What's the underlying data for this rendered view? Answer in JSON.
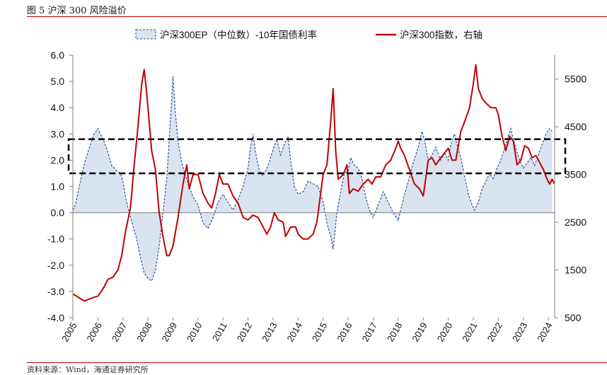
{
  "figure": {
    "title": "图 5 沪深 300 风险溢价",
    "source": "资料来源：Wind，海通证券研究所"
  },
  "colors": {
    "ep_line": "#2f5597",
    "ep_fill": "#dae3f0",
    "index_line": "#c00000",
    "rule": "#c00000",
    "box": "#000000",
    "axis": "#7f7f7f"
  },
  "chart_data": {
    "type": "area+line",
    "title": "",
    "legend": {
      "placement": "top",
      "items": [
        "沪深300EP（中位数）-10年国债利率",
        "沪深300指数，右轴"
      ]
    },
    "x_labels": [
      "2005",
      "2006",
      "2007",
      "2008",
      "2009",
      "2010",
      "2011",
      "2012",
      "2013",
      "2014",
      "2015",
      "2016",
      "2017",
      "2018",
      "2019",
      "2020",
      "2021",
      "2022",
      "2023",
      "2024"
    ],
    "x_range": [
      2005.0,
      2024.25
    ],
    "y_left": {
      "range": [
        -4.0,
        6.0
      ],
      "ticks": [
        "6.0",
        "5.0",
        "4.0",
        "3.0",
        "2.0",
        "1.0",
        "0.0",
        "-1.0",
        "-2.0",
        "-3.0",
        "-4.0"
      ]
    },
    "y_right": {
      "range": [
        500,
        6000
      ],
      "ticks": [
        "5500",
        "4500",
        "3500",
        "2500",
        "1500",
        "500"
      ]
    },
    "box_band": [
      1.5,
      2.8
    ],
    "series": [
      {
        "name": "沪深300EP（中位数）-10年国债利率",
        "axis": "left",
        "style": "dashed area",
        "points": [
          [
            2005.0,
            0.1
          ],
          [
            2005.1,
            0.3
          ],
          [
            2005.3,
            1.2
          ],
          [
            2005.5,
            2.0
          ],
          [
            2005.7,
            2.6
          ],
          [
            2005.85,
            3.0
          ],
          [
            2006.0,
            3.2
          ],
          [
            2006.1,
            3.0
          ],
          [
            2006.25,
            2.7
          ],
          [
            2006.4,
            2.3
          ],
          [
            2006.55,
            1.8
          ],
          [
            2006.75,
            1.6
          ],
          [
            2006.9,
            1.5
          ],
          [
            2007.0,
            1.2
          ],
          [
            2007.1,
            0.6
          ],
          [
            2007.25,
            0.0
          ],
          [
            2007.4,
            -0.5
          ],
          [
            2007.55,
            -1.0
          ],
          [
            2007.7,
            -1.7
          ],
          [
            2007.85,
            -2.3
          ],
          [
            2008.0,
            -2.5
          ],
          [
            2008.15,
            -2.6
          ],
          [
            2008.3,
            -2.2
          ],
          [
            2008.45,
            -1.3
          ],
          [
            2008.6,
            0.0
          ],
          [
            2008.75,
            1.3
          ],
          [
            2008.85,
            2.8
          ],
          [
            2008.95,
            4.3
          ],
          [
            2009.0,
            5.2
          ],
          [
            2009.08,
            4.0
          ],
          [
            2009.2,
            2.7
          ],
          [
            2009.35,
            1.9
          ],
          [
            2009.5,
            1.4
          ],
          [
            2009.65,
            1.0
          ],
          [
            2009.8,
            0.6
          ],
          [
            2010.0,
            0.3
          ],
          [
            2010.2,
            -0.4
          ],
          [
            2010.4,
            -0.6
          ],
          [
            2010.6,
            -0.2
          ],
          [
            2010.8,
            0.4
          ],
          [
            2011.0,
            0.7
          ],
          [
            2011.2,
            0.4
          ],
          [
            2011.4,
            0.1
          ],
          [
            2011.6,
            0.5
          ],
          [
            2011.8,
            1.0
          ],
          [
            2012.0,
            1.7
          ],
          [
            2012.1,
            2.5
          ],
          [
            2012.2,
            3.0
          ],
          [
            2012.3,
            2.3
          ],
          [
            2012.45,
            1.6
          ],
          [
            2012.6,
            1.4
          ],
          [
            2012.8,
            1.8
          ],
          [
            2013.0,
            2.4
          ],
          [
            2013.15,
            2.8
          ],
          [
            2013.3,
            2.2
          ],
          [
            2013.45,
            2.6
          ],
          [
            2013.6,
            2.9
          ],
          [
            2013.7,
            2.0
          ],
          [
            2013.85,
            1.0
          ],
          [
            2014.0,
            0.7
          ],
          [
            2014.2,
            0.8
          ],
          [
            2014.4,
            1.2
          ],
          [
            2014.6,
            1.1
          ],
          [
            2014.8,
            1.0
          ],
          [
            2015.0,
            0.4
          ],
          [
            2015.15,
            -0.4
          ],
          [
            2015.3,
            -0.9
          ],
          [
            2015.4,
            -1.4
          ],
          [
            2015.55,
            0.0
          ],
          [
            2015.7,
            0.8
          ],
          [
            2015.85,
            1.5
          ],
          [
            2016.0,
            1.6
          ],
          [
            2016.1,
            2.1
          ],
          [
            2016.25,
            1.8
          ],
          [
            2016.4,
            1.7
          ],
          [
            2016.55,
            1.3
          ],
          [
            2016.7,
            0.6
          ],
          [
            2016.85,
            0.1
          ],
          [
            2017.0,
            -0.2
          ],
          [
            2017.2,
            0.3
          ],
          [
            2017.4,
            0.8
          ],
          [
            2017.6,
            0.4
          ],
          [
            2017.8,
            0.0
          ],
          [
            2018.0,
            -0.3
          ],
          [
            2018.2,
            0.5
          ],
          [
            2018.4,
            1.2
          ],
          [
            2018.6,
            1.9
          ],
          [
            2018.8,
            2.5
          ],
          [
            2018.95,
            3.1
          ],
          [
            2019.05,
            2.8
          ],
          [
            2019.2,
            2.0
          ],
          [
            2019.35,
            2.2
          ],
          [
            2019.5,
            2.5
          ],
          [
            2019.7,
            2.0
          ],
          [
            2019.85,
            2.3
          ],
          [
            2020.0,
            2.0
          ],
          [
            2020.1,
            2.6
          ],
          [
            2020.25,
            3.0
          ],
          [
            2020.35,
            2.6
          ],
          [
            2020.5,
            2.1
          ],
          [
            2020.65,
            1.4
          ],
          [
            2020.8,
            0.7
          ],
          [
            2020.95,
            0.3
          ],
          [
            2021.05,
            0.1
          ],
          [
            2021.2,
            0.4
          ],
          [
            2021.35,
            0.9
          ],
          [
            2021.5,
            1.2
          ],
          [
            2021.65,
            1.5
          ],
          [
            2021.8,
            1.3
          ],
          [
            2021.95,
            1.7
          ],
          [
            2022.05,
            1.9
          ],
          [
            2022.2,
            2.3
          ],
          [
            2022.35,
            2.8
          ],
          [
            2022.5,
            3.2
          ],
          [
            2022.6,
            2.8
          ],
          [
            2022.75,
            2.3
          ],
          [
            2022.9,
            1.9
          ],
          [
            2023.0,
            1.7
          ],
          [
            2023.15,
            1.9
          ],
          [
            2023.3,
            2.1
          ],
          [
            2023.45,
            1.8
          ],
          [
            2023.6,
            2.2
          ],
          [
            2023.75,
            2.6
          ],
          [
            2023.9,
            3.0
          ],
          [
            2024.05,
            3.2
          ],
          [
            2024.15,
            3.1
          ]
        ]
      },
      {
        "name": "沪深300指数，右轴",
        "axis": "right",
        "style": "solid line",
        "points": [
          [
            2005.0,
            1000
          ],
          [
            2005.15,
            950
          ],
          [
            2005.3,
            900
          ],
          [
            2005.45,
            850
          ],
          [
            2005.6,
            880
          ],
          [
            2005.8,
            920
          ],
          [
            2006.0,
            950
          ],
          [
            2006.2,
            1100
          ],
          [
            2006.4,
            1300
          ],
          [
            2006.6,
            1350
          ],
          [
            2006.8,
            1500
          ],
          [
            2006.95,
            1800
          ],
          [
            2007.1,
            2300
          ],
          [
            2007.3,
            2800
          ],
          [
            2007.45,
            3700
          ],
          [
            2007.6,
            4500
          ],
          [
            2007.75,
            5400
          ],
          [
            2007.85,
            5700
          ],
          [
            2007.95,
            5200
          ],
          [
            2008.05,
            4600
          ],
          [
            2008.15,
            4000
          ],
          [
            2008.3,
            3600
          ],
          [
            2008.45,
            2700
          ],
          [
            2008.6,
            2200
          ],
          [
            2008.75,
            1800
          ],
          [
            2008.85,
            1800
          ],
          [
            2009.0,
            2000
          ],
          [
            2009.2,
            2600
          ],
          [
            2009.4,
            3300
          ],
          [
            2009.55,
            3700
          ],
          [
            2009.65,
            3200
          ],
          [
            2009.8,
            3500
          ],
          [
            2010.0,
            3500
          ],
          [
            2010.2,
            3100
          ],
          [
            2010.4,
            2900
          ],
          [
            2010.55,
            2800
          ],
          [
            2010.7,
            3100
          ],
          [
            2010.85,
            3500
          ],
          [
            2011.0,
            3300
          ],
          [
            2011.2,
            3300
          ],
          [
            2011.4,
            3050
          ],
          [
            2011.6,
            2900
          ],
          [
            2011.8,
            2600
          ],
          [
            2012.0,
            2550
          ],
          [
            2012.2,
            2650
          ],
          [
            2012.4,
            2600
          ],
          [
            2012.6,
            2400
          ],
          [
            2012.75,
            2250
          ],
          [
            2012.9,
            2400
          ],
          [
            2013.05,
            2700
          ],
          [
            2013.2,
            2550
          ],
          [
            2013.4,
            2500
          ],
          [
            2013.5,
            2200
          ],
          [
            2013.7,
            2400
          ],
          [
            2013.9,
            2400
          ],
          [
            2014.0,
            2250
          ],
          [
            2014.2,
            2150
          ],
          [
            2014.4,
            2150
          ],
          [
            2014.6,
            2250
          ],
          [
            2014.75,
            2500
          ],
          [
            2014.9,
            3100
          ],
          [
            2015.0,
            3500
          ],
          [
            2015.15,
            3700
          ],
          [
            2015.3,
            4600
          ],
          [
            2015.4,
            5300
          ],
          [
            2015.5,
            4000
          ],
          [
            2015.6,
            3400
          ],
          [
            2015.8,
            3500
          ],
          [
            2015.95,
            3700
          ],
          [
            2016.05,
            3100
          ],
          [
            2016.2,
            3200
          ],
          [
            2016.4,
            3150
          ],
          [
            2016.6,
            3300
          ],
          [
            2016.8,
            3400
          ],
          [
            2016.95,
            3300
          ],
          [
            2017.1,
            3450
          ],
          [
            2017.3,
            3450
          ],
          [
            2017.5,
            3700
          ],
          [
            2017.7,
            3800
          ],
          [
            2017.9,
            4050
          ],
          [
            2018.0,
            4200
          ],
          [
            2018.1,
            4050
          ],
          [
            2018.25,
            3900
          ],
          [
            2018.45,
            3600
          ],
          [
            2018.65,
            3300
          ],
          [
            2018.85,
            3200
          ],
          [
            2019.0,
            3050
          ],
          [
            2019.2,
            3800
          ],
          [
            2019.35,
            3850
          ],
          [
            2019.5,
            3700
          ],
          [
            2019.7,
            3850
          ],
          [
            2019.85,
            3950
          ],
          [
            2020.0,
            4050
          ],
          [
            2020.15,
            3800
          ],
          [
            2020.3,
            3800
          ],
          [
            2020.5,
            4400
          ],
          [
            2020.65,
            4600
          ],
          [
            2020.85,
            4900
          ],
          [
            2021.0,
            5400
          ],
          [
            2021.1,
            5800
          ],
          [
            2021.2,
            5300
          ],
          [
            2021.35,
            5100
          ],
          [
            2021.5,
            5000
          ],
          [
            2021.7,
            4900
          ],
          [
            2021.9,
            4900
          ],
          [
            2022.0,
            4750
          ],
          [
            2022.15,
            4300
          ],
          [
            2022.3,
            4000
          ],
          [
            2022.45,
            4300
          ],
          [
            2022.6,
            4200
          ],
          [
            2022.75,
            3700
          ],
          [
            2022.9,
            3800
          ],
          [
            2023.05,
            4100
          ],
          [
            2023.2,
            4050
          ],
          [
            2023.35,
            3850
          ],
          [
            2023.5,
            3900
          ],
          [
            2023.65,
            3750
          ],
          [
            2023.8,
            3600
          ],
          [
            2023.95,
            3400
          ],
          [
            2024.05,
            3300
          ],
          [
            2024.15,
            3400
          ],
          [
            2024.25,
            3300
          ]
        ]
      }
    ]
  }
}
